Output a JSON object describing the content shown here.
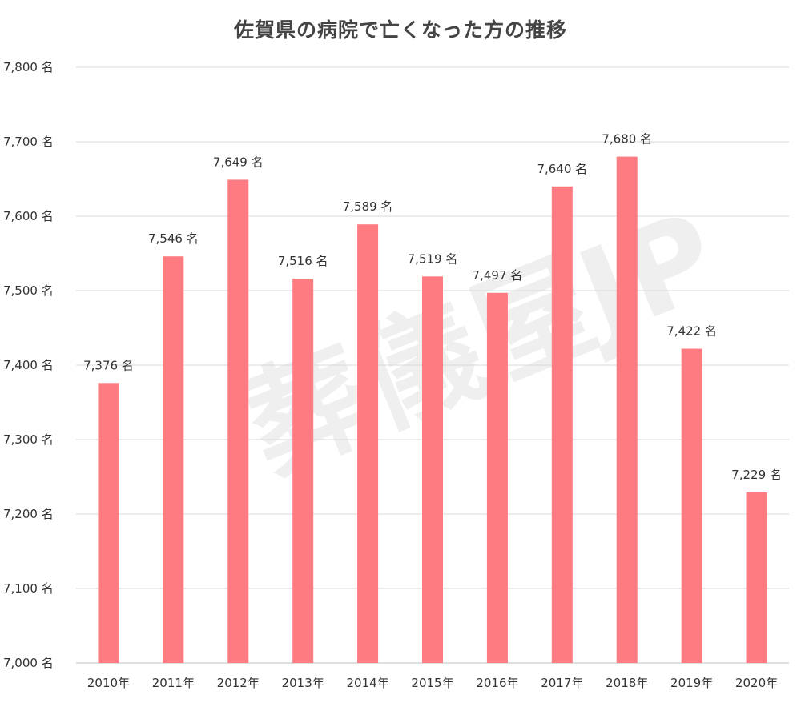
{
  "chart_data": {
    "type": "bar",
    "title": "佐賀県の病院で亡くなった方の推移",
    "categories": [
      "2010年",
      "2011年",
      "2012年",
      "2013年",
      "2014年",
      "2015年",
      "2016年",
      "2017年",
      "2018年",
      "2019年",
      "2020年"
    ],
    "values": [
      7376,
      7546,
      7649,
      7516,
      7589,
      7519,
      7497,
      7640,
      7680,
      7422,
      7229
    ],
    "value_labels": [
      "7,376 名",
      "7,546 名",
      "7,649 名",
      "7,516 名",
      "7,589 名",
      "7,519 名",
      "7,497 名",
      "7,640 名",
      "7,680 名",
      "7,422 名",
      "7,229 名"
    ],
    "ylim": [
      7000,
      7800
    ],
    "yticks": [
      7000,
      7100,
      7200,
      7300,
      7400,
      7500,
      7600,
      7700,
      7800
    ],
    "ytick_labels": [
      "7,000 名",
      "7,100 名",
      "7,200 名",
      "7,300 名",
      "7,400 名",
      "7,500 名",
      "7,600 名",
      "7,700 名",
      "7,800 名"
    ],
    "bar_color": "#ff7b82",
    "grid": true,
    "legend": "none"
  },
  "watermark": "葬儀屋JP"
}
